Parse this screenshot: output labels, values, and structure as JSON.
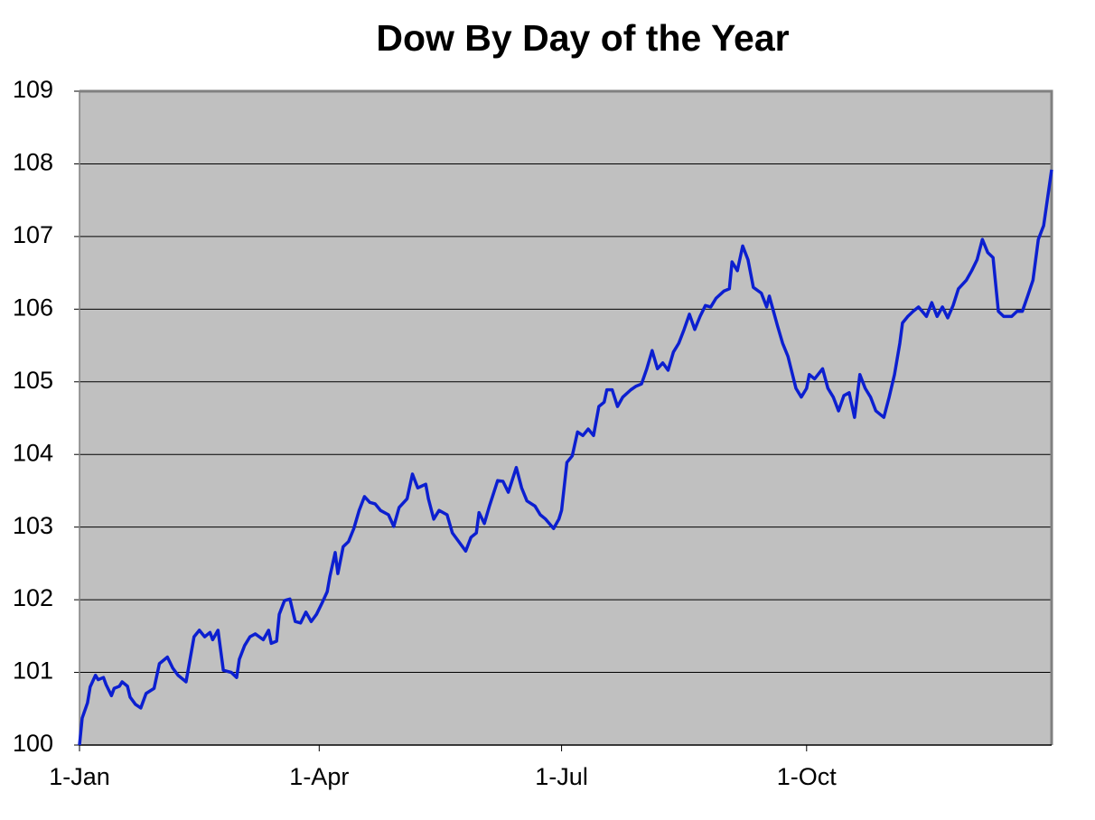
{
  "chart_data": {
    "type": "line",
    "title": "Dow By Day of the Year",
    "x": [
      0,
      1,
      3,
      4,
      6,
      7,
      9,
      10,
      12,
      13,
      15,
      16,
      18,
      19,
      21,
      23,
      25,
      28,
      30,
      33,
      35,
      37,
      40,
      43,
      45,
      47,
      49,
      50,
      52,
      54,
      57,
      59,
      60,
      62,
      64,
      66,
      69,
      71,
      72,
      74,
      75,
      77,
      79,
      81,
      83,
      85,
      87,
      89,
      91,
      93,
      94,
      96,
      97,
      99,
      101,
      103,
      105,
      107,
      109,
      111,
      113,
      116,
      118,
      120,
      123,
      125,
      127,
      130,
      131,
      133,
      135,
      138,
      140,
      142,
      145,
      147,
      149,
      150,
      152,
      154,
      157,
      159,
      161,
      164,
      166,
      168,
      171,
      173,
      175,
      178,
      180,
      181,
      183,
      185,
      187,
      189,
      191,
      193,
      195,
      197,
      198,
      200,
      202,
      204,
      207,
      209,
      211,
      213,
      215,
      217,
      219,
      221,
      223,
      225,
      227,
      229,
      231,
      233,
      235,
      237,
      239,
      242,
      244,
      245,
      247,
      249,
      251,
      253,
      256,
      258,
      259,
      262,
      264,
      266,
      269,
      271,
      273,
      274,
      276,
      279,
      281,
      283,
      285,
      287,
      289,
      291,
      293,
      295,
      297,
      299,
      302,
      304,
      306,
      308,
      309,
      311,
      313,
      315,
      318,
      320,
      322,
      324,
      326,
      328,
      330,
      333,
      335,
      337,
      339,
      341,
      343,
      345,
      347,
      350,
      352,
      354,
      356,
      358,
      360,
      362,
      365
    ],
    "series": [
      {
        "name": "Dow",
        "color": "#0c1fd0",
        "values": [
          100.0,
          100.37,
          100.58,
          100.8,
          100.96,
          100.9,
          100.93,
          100.83,
          100.68,
          100.78,
          100.81,
          100.87,
          100.81,
          100.66,
          100.56,
          100.51,
          100.71,
          100.78,
          101.12,
          101.21,
          101.06,
          100.96,
          100.87,
          101.49,
          101.58,
          101.49,
          101.55,
          101.45,
          101.58,
          101.03,
          101.0,
          100.93,
          101.18,
          101.37,
          101.49,
          101.53,
          101.45,
          101.58,
          101.4,
          101.43,
          101.8,
          101.99,
          102.01,
          101.7,
          101.68,
          101.83,
          101.7,
          101.8,
          101.95,
          102.11,
          102.32,
          102.65,
          102.36,
          102.73,
          102.8,
          102.98,
          103.23,
          103.42,
          103.34,
          103.32,
          103.23,
          103.17,
          103.01,
          103.27,
          103.39,
          103.73,
          103.54,
          103.59,
          103.39,
          103.11,
          103.23,
          103.17,
          102.92,
          102.82,
          102.67,
          102.86,
          102.92,
          103.2,
          103.05,
          103.3,
          103.64,
          103.63,
          103.48,
          103.82,
          103.54,
          103.36,
          103.29,
          103.17,
          103.11,
          102.98,
          103.11,
          103.23,
          103.89,
          103.98,
          104.31,
          104.26,
          104.35,
          104.26,
          104.66,
          104.72,
          104.89,
          104.89,
          104.66,
          104.79,
          104.89,
          104.94,
          104.97,
          105.18,
          105.43,
          105.18,
          105.26,
          105.16,
          105.41,
          105.53,
          105.72,
          105.93,
          105.72,
          105.9,
          106.05,
          106.03,
          106.15,
          106.25,
          106.28,
          106.65,
          106.53,
          106.87,
          106.68,
          106.3,
          106.22,
          106.03,
          106.18,
          105.78,
          105.53,
          105.35,
          104.91,
          104.79,
          104.91,
          105.1,
          105.04,
          105.18,
          104.91,
          104.79,
          104.6,
          104.81,
          104.85,
          104.51,
          105.1,
          104.91,
          104.79,
          104.6,
          104.51,
          104.79,
          105.1,
          105.53,
          105.81,
          105.9,
          105.97,
          106.03,
          105.9,
          106.09,
          105.9,
          106.03,
          105.88,
          106.05,
          106.28,
          106.4,
          106.53,
          106.68,
          106.96,
          106.78,
          106.71,
          105.97,
          105.9,
          105.9,
          105.97,
          105.97,
          106.18,
          106.4,
          106.96,
          107.15,
          107.92
        ]
      }
    ],
    "xlim": [
      0,
      365
    ],
    "xticks": [
      {
        "value": 0,
        "label": "1-Jan"
      },
      {
        "value": 90,
        "label": "1-Apr"
      },
      {
        "value": 181,
        "label": "1-Jul"
      },
      {
        "value": 273,
        "label": "1-Oct"
      }
    ],
    "ylim": [
      100,
      109
    ],
    "yticks": [
      100,
      101,
      102,
      103,
      104,
      105,
      106,
      107,
      108,
      109
    ],
    "grid": true
  }
}
